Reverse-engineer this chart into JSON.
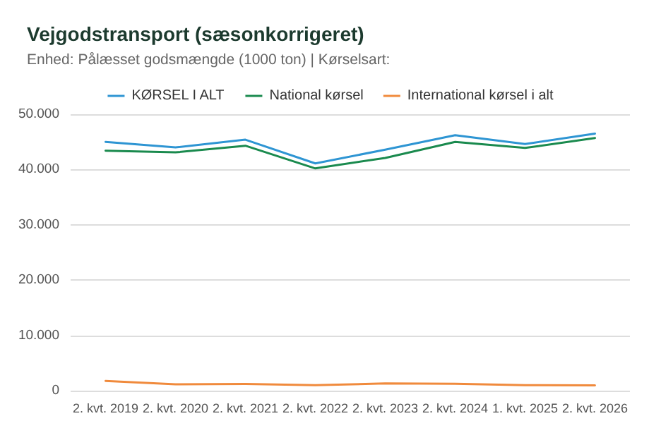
{
  "chart_data": {
    "type": "line",
    "title": "Vejgodstransport (sæsonkorrigeret)",
    "subtitle": "Enhed: Pålæsset godsmængde (1000 ton) | Kørselsart:",
    "categories": [
      "2. kvt. 2019",
      "2. kvt. 2020",
      "2. kvt. 2021",
      "2. kvt. 2022",
      "2. kvt. 2023",
      "2. kvt. 2024",
      "1. kvt. 2025",
      "2. kvt. 2026"
    ],
    "series": [
      {
        "name": "KØRSEL I ALT",
        "color": "#2e95d3",
        "values": [
          45000,
          44000,
          45400,
          41100,
          43600,
          46200,
          44600,
          46500
        ]
      },
      {
        "name": "National kørsel",
        "color": "#1a8a4e",
        "values": [
          43400,
          43100,
          44300,
          40200,
          42100,
          45000,
          43900,
          45700
        ]
      },
      {
        "name": "International kørsel i alt",
        "color": "#f08a3c",
        "values": [
          1750,
          1150,
          1200,
          1000,
          1300,
          1250,
          1000,
          950
        ]
      }
    ],
    "ylim": [
      0,
      50000
    ],
    "yticks": [
      {
        "value": 0,
        "label": "0"
      },
      {
        "value": 10000,
        "label": "10.000"
      },
      {
        "value": 20000,
        "label": "20.000"
      },
      {
        "value": 30000,
        "label": "30.000"
      },
      {
        "value": 40000,
        "label": "40.000"
      },
      {
        "value": 50000,
        "label": "50.000"
      }
    ],
    "grid": "y",
    "legend": "top",
    "marker": "none",
    "line_style": "solid"
  }
}
